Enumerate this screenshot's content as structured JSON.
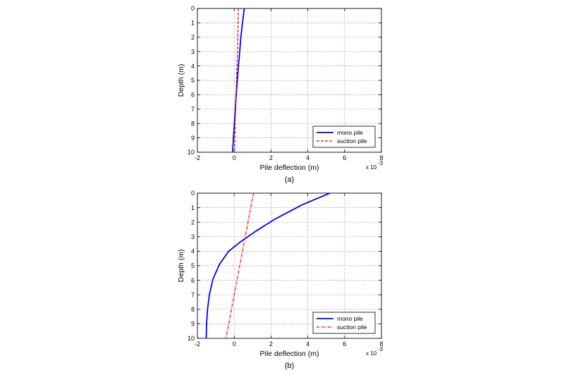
{
  "chart_data": [
    {
      "type": "line",
      "caption": "(a)",
      "xlabel": "Pile deflection (m)",
      "ylabel": "Depth (m)",
      "x_multiplier": "x 10",
      "x_exponent": "-3",
      "xlim": [
        -2,
        8
      ],
      "ylim": [
        0,
        10
      ],
      "y_reversed": true,
      "xticks": [
        -2,
        0,
        2,
        4,
        6,
        8
      ],
      "yticks": [
        0,
        1,
        2,
        3,
        4,
        5,
        6,
        7,
        8,
        9,
        10
      ],
      "grid": true,
      "legend": "bottom-right",
      "series": [
        {
          "name": "mono pile",
          "color": "#0000ff",
          "style": "solid",
          "points": [
            [
              0.55,
              0
            ],
            [
              0.45,
              1
            ],
            [
              0.36,
              2
            ],
            [
              0.3,
              3
            ],
            [
              0.23,
              4
            ],
            [
              0.17,
              5
            ],
            [
              0.11,
              6
            ],
            [
              0.06,
              7
            ],
            [
              0.01,
              8
            ],
            [
              -0.04,
              9
            ],
            [
              -0.09,
              10
            ]
          ]
        },
        {
          "name": "suction pile",
          "color": "#ff0000",
          "style": "dashed",
          "points": [
            [
              0.22,
              0
            ],
            [
              0.2,
              2
            ],
            [
              0.15,
              4
            ],
            [
              0.1,
              6
            ],
            [
              0.05,
              8
            ],
            [
              0.02,
              10
            ]
          ]
        }
      ]
    },
    {
      "type": "line",
      "caption": "(b)",
      "xlabel": "Pile deflection (m)",
      "ylabel": "Depth (m)",
      "x_multiplier": "x 10",
      "x_exponent": "-3",
      "xlim": [
        -2,
        8
      ],
      "ylim": [
        0,
        10
      ],
      "y_reversed": true,
      "xticks": [
        -2,
        0,
        2,
        4,
        6,
        8
      ],
      "yticks": [
        0,
        1,
        2,
        3,
        4,
        5,
        6,
        7,
        8,
        9,
        10
      ],
      "grid": true,
      "legend": "bottom-right",
      "series": [
        {
          "name": "mono pile",
          "color": "#0000ff",
          "style": "solid",
          "points": [
            [
              5.2,
              0
            ],
            [
              3.7,
              0.8
            ],
            [
              2.2,
              1.8
            ],
            [
              1.2,
              2.6
            ],
            [
              0.4,
              3.3
            ],
            [
              -0.3,
              4.0
            ],
            [
              -0.8,
              4.9
            ],
            [
              -1.15,
              5.9
            ],
            [
              -1.35,
              7.0
            ],
            [
              -1.45,
              8.0
            ],
            [
              -1.5,
              9.0
            ],
            [
              -1.52,
              10
            ]
          ]
        },
        {
          "name": "suction pile",
          "color": "#ff0000",
          "style": "dash-dot",
          "points": [
            [
              1.05,
              0
            ],
            [
              0.75,
              2
            ],
            [
              0.45,
              4
            ],
            [
              0.15,
              6
            ],
            [
              -0.15,
              8
            ],
            [
              -0.45,
              10
            ]
          ]
        }
      ]
    }
  ]
}
